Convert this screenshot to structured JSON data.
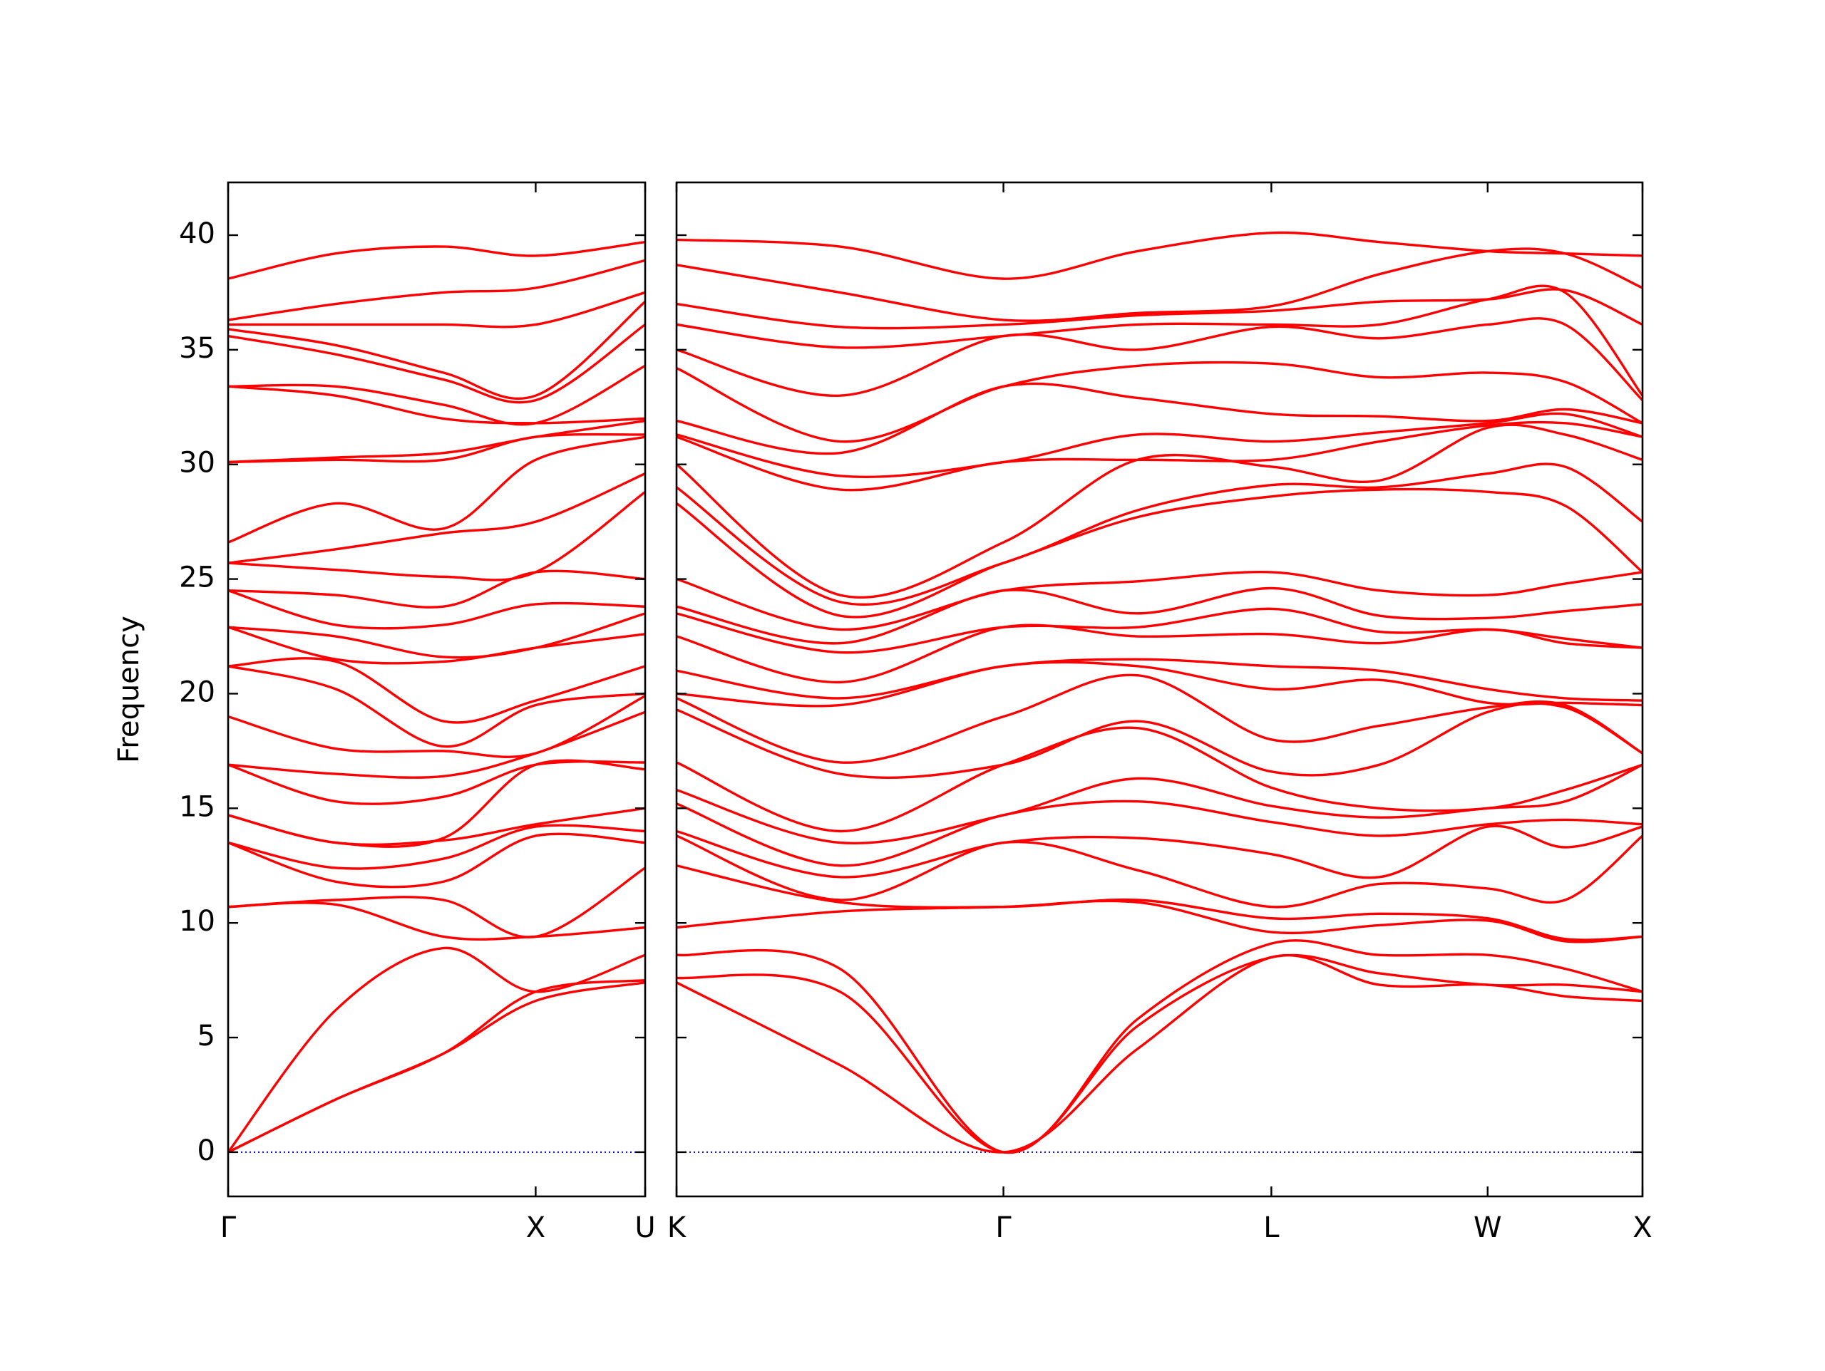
{
  "chart_data": [
    {
      "type": "line",
      "ylabel": "Frequency",
      "ytick_labels": true,
      "color": "#ff0000",
      "zero_line": true,
      "zero_line_color": "#0000cc",
      "x": [
        0,
        0.35,
        0.7,
        1.0,
        1.356
      ],
      "xlim": [
        0,
        1.356
      ],
      "xticks": [
        {
          "value": 0,
          "label": "Γ"
        },
        {
          "value": 1.0,
          "label": "X"
        },
        {
          "value": 1.356,
          "label": "U"
        }
      ],
      "ylim": [
        -1.93,
        42.3
      ],
      "yticks": [
        0,
        5,
        10,
        15,
        20,
        25,
        30,
        35,
        40
      ],
      "series": [
        {
          "values": [
            0,
            2.3,
            4.3,
            6.6,
            7.4
          ]
        },
        {
          "values": [
            0,
            2.3,
            4.3,
            7.0,
            7.5
          ]
        },
        {
          "values": [
            0,
            6.2,
            8.9,
            7.0,
            8.6
          ]
        },
        {
          "values": [
            10.7,
            10.8,
            9.4,
            9.4,
            9.8
          ]
        },
        {
          "values": [
            10.7,
            11.0,
            11.0,
            9.4,
            12.4
          ]
        },
        {
          "values": [
            13.5,
            11.8,
            11.8,
            13.8,
            13.5
          ]
        },
        {
          "values": [
            13.5,
            12.4,
            12.8,
            14.2,
            14.0
          ]
        },
        {
          "values": [
            14.7,
            13.5,
            13.6,
            14.3,
            15.0
          ]
        },
        {
          "values": [
            14.7,
            13.5,
            13.7,
            16.9,
            16.7
          ]
        },
        {
          "values": [
            16.9,
            15.3,
            15.5,
            16.9,
            17.0
          ]
        },
        {
          "values": [
            16.9,
            16.5,
            16.4,
            17.4,
            19.2
          ]
        },
        {
          "values": [
            19.0,
            17.6,
            17.5,
            17.4,
            19.9
          ]
        },
        {
          "values": [
            21.2,
            20.2,
            17.7,
            19.5,
            20.0
          ]
        },
        {
          "values": [
            21.2,
            21.4,
            18.8,
            19.7,
            21.2
          ]
        },
        {
          "values": [
            22.9,
            21.5,
            21.4,
            22.0,
            22.6
          ]
        },
        {
          "values": [
            22.9,
            22.5,
            21.6,
            22.0,
            23.5
          ]
        },
        {
          "values": [
            24.5,
            23.0,
            23.0,
            23.9,
            23.8
          ]
        },
        {
          "values": [
            24.5,
            24.3,
            23.8,
            25.3,
            25.0
          ]
        },
        {
          "values": [
            25.7,
            25.4,
            25.1,
            25.3,
            28.8
          ]
        },
        {
          "values": [
            25.7,
            26.3,
            27.0,
            27.5,
            29.6
          ]
        },
        {
          "values": [
            26.6,
            28.3,
            27.2,
            30.2,
            31.2
          ]
        },
        {
          "values": [
            30.1,
            30.2,
            30.2,
            31.2,
            31.3
          ]
        },
        {
          "values": [
            30.1,
            30.3,
            30.5,
            31.2,
            31.9
          ]
        },
        {
          "values": [
            33.4,
            33.0,
            32.0,
            31.8,
            32.0
          ]
        },
        {
          "values": [
            33.4,
            33.4,
            32.6,
            31.8,
            34.3
          ]
        },
        {
          "values": [
            35.6,
            34.8,
            33.7,
            32.8,
            36.1
          ]
        },
        {
          "values": [
            35.9,
            35.2,
            34.0,
            33.0,
            37.1
          ]
        },
        {
          "values": [
            36.1,
            36.1,
            36.1,
            36.1,
            37.5
          ]
        },
        {
          "values": [
            36.3,
            37.0,
            37.5,
            37.7,
            38.9
          ]
        },
        {
          "values": [
            38.1,
            39.2,
            39.5,
            39.1,
            39.7
          ]
        }
      ]
    },
    {
      "type": "line",
      "ytick_labels": false,
      "color": "#ff0000",
      "zero_line": true,
      "zero_line_color": "#0000cc",
      "x": [
        0,
        0.532,
        1.064,
        1.5,
        1.936,
        2.288,
        2.64,
        2.892,
        3.144
      ],
      "xlim": [
        0,
        3.144
      ],
      "xticks": [
        {
          "value": 0,
          "label": "K"
        },
        {
          "value": 1.064,
          "label": "Γ"
        },
        {
          "value": 1.936,
          "label": "L"
        },
        {
          "value": 2.64,
          "label": "W"
        },
        {
          "value": 3.144,
          "label": "X"
        }
      ],
      "ylim": [
        -1.93,
        42.3
      ],
      "yticks": [
        0,
        5,
        10,
        15,
        20,
        25,
        30,
        35,
        40
      ],
      "series": [
        {
          "values": [
            7.4,
            3.8,
            0,
            4.5,
            8.5,
            7.3,
            7.3,
            6.8,
            6.6
          ]
        },
        {
          "values": [
            7.6,
            7.0,
            0,
            5.5,
            8.5,
            7.8,
            7.3,
            7.3,
            7.0
          ]
        },
        {
          "values": [
            8.6,
            8.0,
            0,
            5.8,
            9.1,
            8.6,
            8.6,
            8.0,
            7.0
          ]
        },
        {
          "values": [
            9.8,
            10.5,
            10.7,
            10.9,
            9.6,
            9.9,
            10.1,
            9.2,
            9.4
          ]
        },
        {
          "values": [
            12.5,
            10.9,
            10.7,
            11.0,
            10.2,
            10.4,
            10.2,
            9.3,
            9.4
          ]
        },
        {
          "values": [
            13.8,
            11.0,
            13.5,
            12.3,
            10.7,
            11.7,
            11.5,
            11.0,
            13.8
          ]
        },
        {
          "values": [
            14.0,
            12.0,
            13.5,
            13.7,
            13.0,
            12.0,
            14.2,
            13.3,
            14.2
          ]
        },
        {
          "values": [
            15.2,
            12.5,
            14.7,
            15.3,
            14.4,
            13.8,
            14.3,
            14.5,
            14.3
          ]
        },
        {
          "values": [
            15.8,
            13.5,
            14.7,
            16.3,
            15.1,
            14.6,
            15.0,
            15.3,
            16.9
          ]
        },
        {
          "values": [
            17.0,
            14.0,
            16.9,
            18.5,
            15.9,
            15.0,
            15.0,
            15.8,
            16.9
          ]
        },
        {
          "values": [
            19.3,
            16.5,
            16.9,
            18.8,
            16.6,
            16.9,
            19.2,
            19.4,
            17.4
          ]
        },
        {
          "values": [
            19.8,
            17.0,
            19.0,
            20.8,
            18.0,
            18.6,
            19.4,
            19.5,
            17.4
          ]
        },
        {
          "values": [
            20.0,
            19.5,
            21.2,
            21.2,
            20.2,
            20.6,
            19.6,
            19.6,
            19.5
          ]
        },
        {
          "values": [
            21.0,
            19.8,
            21.2,
            21.5,
            21.2,
            21.0,
            20.2,
            19.8,
            19.7
          ]
        },
        {
          "values": [
            22.5,
            20.5,
            22.9,
            22.5,
            22.6,
            22.2,
            22.8,
            22.2,
            22.0
          ]
        },
        {
          "values": [
            23.5,
            21.8,
            22.9,
            22.9,
            23.7,
            22.7,
            22.8,
            22.4,
            22.0
          ]
        },
        {
          "values": [
            23.8,
            22.2,
            24.5,
            23.5,
            24.6,
            23.4,
            23.3,
            23.6,
            23.9
          ]
        },
        {
          "values": [
            25.0,
            22.8,
            24.5,
            24.9,
            25.3,
            24.5,
            24.3,
            24.8,
            25.3
          ]
        },
        {
          "values": [
            28.3,
            23.4,
            25.7,
            27.7,
            28.6,
            28.9,
            28.8,
            28.2,
            25.3
          ]
        },
        {
          "values": [
            29.0,
            24.0,
            25.7,
            28.0,
            29.1,
            29.0,
            29.6,
            29.9,
            27.5
          ]
        },
        {
          "values": [
            30.0,
            24.3,
            26.6,
            30.2,
            29.9,
            29.3,
            31.6,
            31.3,
            30.2
          ]
        },
        {
          "values": [
            31.2,
            28.9,
            30.1,
            30.2,
            30.2,
            31.0,
            31.7,
            31.8,
            31.2
          ]
        },
        {
          "values": [
            31.3,
            29.5,
            30.1,
            31.3,
            31.0,
            31.4,
            31.8,
            32.2,
            31.2
          ]
        },
        {
          "values": [
            31.9,
            30.5,
            33.4,
            32.9,
            32.2,
            32.1,
            31.9,
            32.4,
            31.8
          ]
        },
        {
          "values": [
            34.2,
            31.0,
            33.4,
            34.3,
            34.4,
            33.8,
            34.0,
            33.6,
            31.8
          ]
        },
        {
          "values": [
            35.0,
            33.0,
            35.6,
            35.0,
            36.0,
            35.5,
            36.1,
            36.1,
            32.8
          ]
        },
        {
          "values": [
            36.1,
            35.1,
            35.6,
            36.1,
            36.1,
            36.1,
            37.2,
            37.5,
            33.0
          ]
        },
        {
          "values": [
            37.0,
            36.0,
            36.1,
            36.5,
            36.7,
            37.1,
            37.2,
            37.6,
            36.1
          ]
        },
        {
          "values": [
            38.7,
            37.5,
            36.3,
            36.6,
            36.9,
            38.3,
            39.3,
            39.2,
            37.7
          ]
        },
        {
          "values": [
            39.8,
            39.5,
            38.1,
            39.3,
            40.1,
            39.7,
            39.3,
            39.2,
            39.1
          ]
        }
      ]
    }
  ]
}
